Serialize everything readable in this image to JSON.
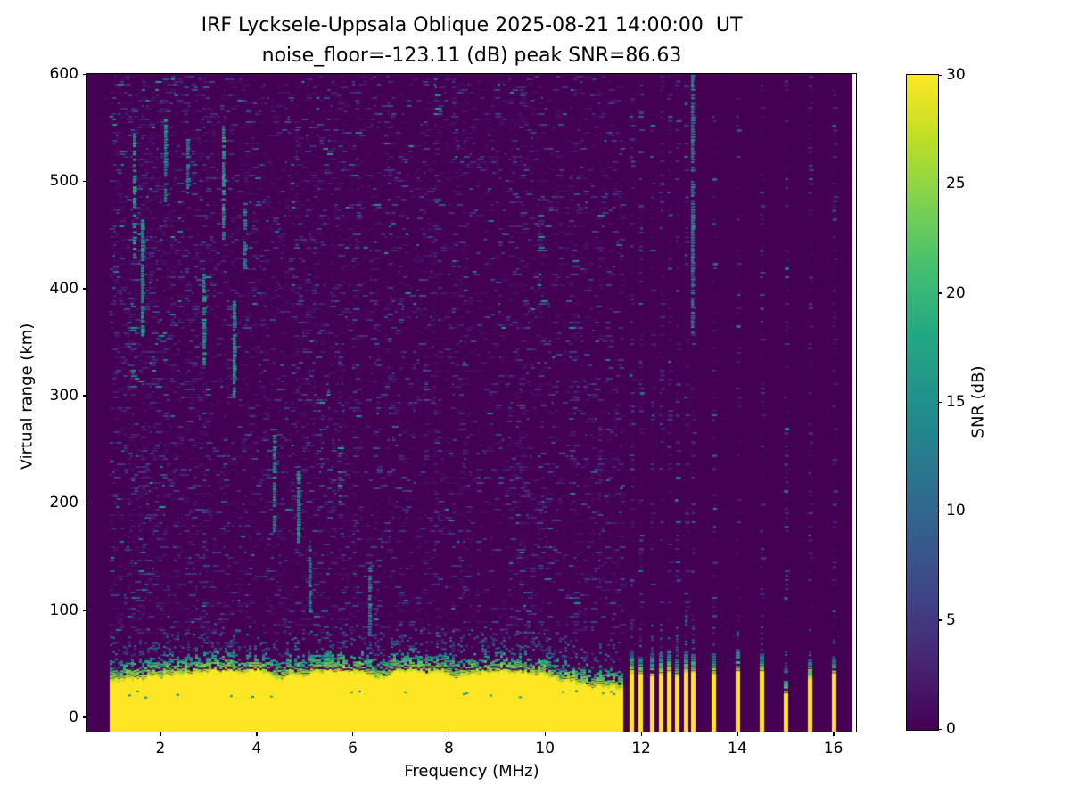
{
  "chart_data": {
    "type": "heatmap",
    "title": "IRF Lycksele-Uppsala Oblique 2025-08-21 14:00:00  UT",
    "subtitle": "noise_floor=-123.11 (dB) peak SNR=86.63",
    "xlabel": "Frequency (MHz)",
    "ylabel": "Virtual range (km)",
    "colorbar_label": "SNR (dB)",
    "colormap": "viridis",
    "noise_floor_db": -123.11,
    "peak_snr_db": 86.63,
    "xlim": [
      0.48,
      16.47
    ],
    "ylim": [
      -13.3,
      600
    ],
    "zlim": [
      0,
      30
    ],
    "xticks": [
      2,
      4,
      6,
      8,
      10,
      12,
      14,
      16
    ],
    "yticks": [
      0,
      100,
      200,
      300,
      400,
      500,
      600
    ],
    "colorbar_ticks": [
      0,
      5,
      10,
      15,
      20,
      25,
      30
    ],
    "grid": false,
    "legend": "colorbar-right",
    "data_freq_range": [
      0.95,
      16.4
    ],
    "ground_echo": {
      "freq_start": 0.95,
      "freq_end": 11.62,
      "solid_top_km_mean": 36,
      "transition_km": 22,
      "dark_lamina_km": 45
    },
    "interference_bars": {
      "cluster_freqs_mhz": [
        11.8,
        11.99,
        12.22,
        12.4,
        12.57,
        12.75,
        12.92,
        13.08
      ],
      "sparse_freqs_mhz": [
        13.5,
        14.0,
        14.5,
        15.0,
        15.5,
        16.0
      ],
      "weak_bar_freq_mhz": 15.0
    },
    "echo_streaks": [
      {
        "f": 1.45,
        "km0": 430,
        "km1": 545,
        "v": 0.55
      },
      {
        "f": 1.62,
        "km0": 355,
        "km1": 465,
        "v": 0.5
      },
      {
        "f": 2.1,
        "km0": 480,
        "km1": 560,
        "v": 0.45
      },
      {
        "f": 2.55,
        "km0": 490,
        "km1": 540,
        "v": 0.4
      },
      {
        "f": 2.9,
        "km0": 330,
        "km1": 415,
        "v": 0.5
      },
      {
        "f": 3.3,
        "km0": 445,
        "km1": 555,
        "v": 0.55
      },
      {
        "f": 3.52,
        "km0": 300,
        "km1": 390,
        "v": 0.5
      },
      {
        "f": 3.75,
        "km0": 420,
        "km1": 480,
        "v": 0.45
      },
      {
        "f": 4.35,
        "km0": 175,
        "km1": 265,
        "v": 0.45
      },
      {
        "f": 4.85,
        "km0": 165,
        "km1": 235,
        "v": 0.5
      },
      {
        "f": 5.1,
        "km0": 100,
        "km1": 160,
        "v": 0.4
      },
      {
        "f": 6.35,
        "km0": 75,
        "km1": 140,
        "v": 0.45
      },
      {
        "f": 13.05,
        "km0": 360,
        "km1": 600,
        "v": 0.42
      }
    ],
    "colors": {
      "background": "#440154",
      "peak": "#fde725",
      "echo_teal": "#21918c",
      "viridis_stops": [
        {
          "t": 0.0,
          "c": "#440154"
        },
        {
          "t": 0.1,
          "c": "#482374"
        },
        {
          "t": 0.2,
          "c": "#404387"
        },
        {
          "t": 0.3,
          "c": "#345e8d"
        },
        {
          "t": 0.4,
          "c": "#29788e"
        },
        {
          "t": 0.5,
          "c": "#20908c"
        },
        {
          "t": 0.6,
          "c": "#22a784"
        },
        {
          "t": 0.7,
          "c": "#42be71"
        },
        {
          "t": 0.8,
          "c": "#7ad151"
        },
        {
          "t": 0.9,
          "c": "#bdde26"
        },
        {
          "t": 1.0,
          "c": "#fde725"
        }
      ]
    }
  }
}
